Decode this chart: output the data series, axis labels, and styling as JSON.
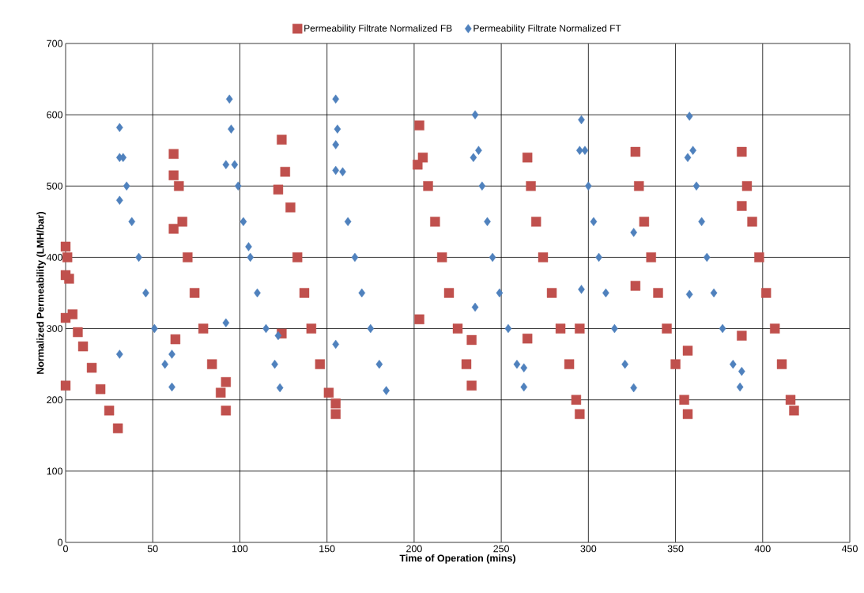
{
  "chart_data": {
    "type": "scatter",
    "xlabel": "Time of Operation (mins)",
    "ylabel": "Normalized Permeability (LMH/bar)",
    "xlim": [
      0,
      450
    ],
    "ylim": [
      0,
      700
    ],
    "xticks": [
      0,
      50,
      100,
      150,
      200,
      250,
      300,
      350,
      400,
      450
    ],
    "yticks": [
      0,
      100,
      200,
      300,
      400,
      500,
      600,
      700
    ],
    "grid": true,
    "legend": "top",
    "series": [
      {
        "name": "Permeability Filtrate Normalized FB",
        "color": "#c0504d",
        "marker": "square",
        "x": [
          0,
          1,
          2,
          4,
          7,
          10,
          15,
          20,
          25,
          30,
          0,
          0,
          0,
          62,
          65,
          67,
          70,
          74,
          79,
          84,
          89,
          92,
          62,
          63,
          92,
          62,
          124,
          126,
          129,
          133,
          137,
          141,
          146,
          151,
          155,
          122,
          124,
          155,
          203,
          205,
          208,
          212,
          216,
          220,
          225,
          230,
          233,
          203,
          233,
          202,
          265,
          267,
          270,
          274,
          279,
          284,
          289,
          293,
          295,
          265,
          295,
          327,
          329,
          332,
          336,
          340,
          345,
          350,
          355,
          357,
          327,
          357,
          388,
          391,
          394,
          398,
          402,
          407,
          411,
          416,
          418,
          388,
          388
        ],
        "values": [
          415,
          400,
          370,
          320,
          295,
          275,
          245,
          215,
          185,
          160,
          315,
          220,
          375,
          545,
          500,
          450,
          400,
          350,
          300,
          250,
          210,
          185,
          440,
          285,
          225,
          515,
          565,
          520,
          470,
          400,
          350,
          300,
          250,
          210,
          180,
          495,
          293,
          195,
          585,
          540,
          500,
          450,
          400,
          350,
          300,
          250,
          220,
          313,
          284,
          530,
          540,
          500,
          450,
          400,
          350,
          300,
          250,
          200,
          180,
          286,
          300,
          548,
          500,
          450,
          400,
          350,
          300,
          250,
          200,
          180,
          360,
          269,
          548,
          500,
          450,
          400,
          350,
          300,
          250,
          200,
          185,
          472,
          290
        ]
      },
      {
        "name": "Permeability Filtrate Normalized FT",
        "color": "#4f81bd",
        "marker": "diamond",
        "x": [
          31,
          33,
          35,
          38,
          42,
          46,
          51,
          57,
          61,
          31,
          31,
          61,
          31,
          94,
          95,
          97,
          99,
          102,
          106,
          110,
          115,
          120,
          123,
          92,
          92,
          122,
          105,
          155,
          156,
          159,
          162,
          166,
          170,
          175,
          180,
          184,
          155,
          155,
          155,
          235,
          237,
          239,
          242,
          245,
          249,
          254,
          259,
          263,
          234,
          235,
          263,
          296,
          298,
          300,
          303,
          306,
          310,
          315,
          321,
          326,
          295,
          296,
          326,
          358,
          360,
          362,
          365,
          368,
          372,
          377,
          383,
          387,
          357,
          358,
          388
        ],
        "values": [
          582,
          540,
          500,
          450,
          400,
          350,
          300,
          250,
          218,
          480,
          264,
          264,
          540,
          622,
          580,
          530,
          500,
          450,
          400,
          350,
          300,
          250,
          217,
          530,
          308,
          290,
          415,
          622,
          580,
          520,
          450,
          400,
          350,
          300,
          250,
          213,
          558,
          522,
          278,
          600,
          550,
          500,
          450,
          400,
          350,
          300,
          250,
          218,
          540,
          330,
          245,
          593,
          550,
          500,
          450,
          400,
          350,
          300,
          250,
          217,
          550,
          355,
          435,
          598,
          550,
          500,
          450,
          400,
          350,
          300,
          250,
          218,
          540,
          348,
          240
        ]
      }
    ]
  }
}
